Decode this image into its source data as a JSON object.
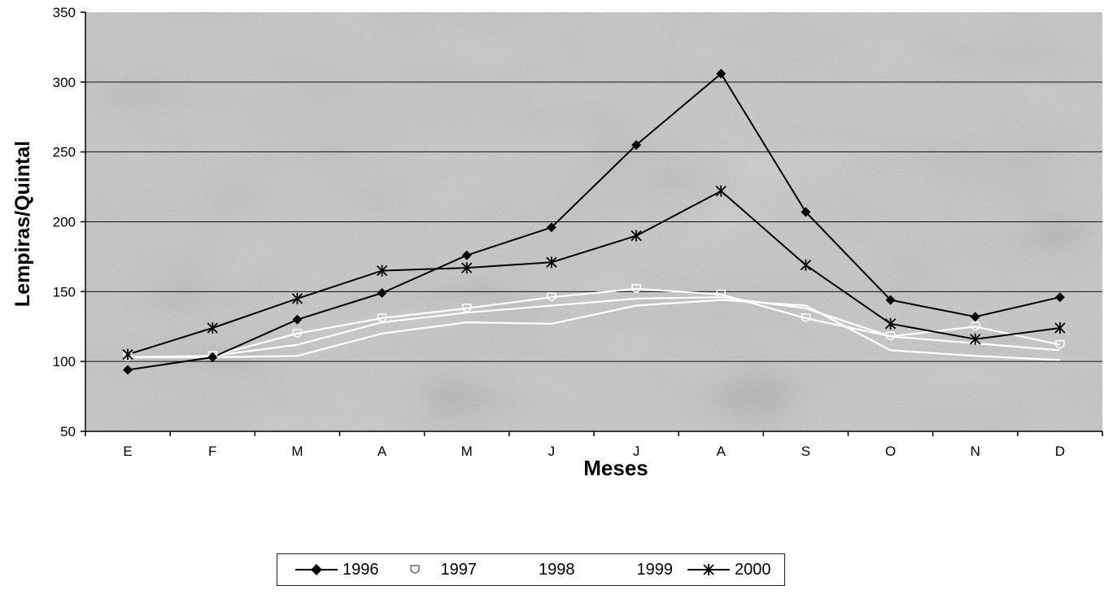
{
  "chart_data": {
    "type": "line",
    "xlabel": "Meses",
    "ylabel": "Lempiras/Quintal",
    "categories": [
      "E",
      "F",
      "M",
      "A",
      "M",
      "J",
      "J",
      "A",
      "S",
      "O",
      "N",
      "D"
    ],
    "ylim": [
      50,
      350
    ],
    "yticks": [
      "50",
      "100",
      "150",
      "200",
      "250",
      "300",
      "350"
    ],
    "grid": true,
    "legend_position": "bottom",
    "series": [
      {
        "name": "1996",
        "marker": "diamond",
        "color": "#000000",
        "values": [
          94,
          103,
          130,
          149,
          176,
          196,
          255,
          306,
          207,
          144,
          132,
          146
        ]
      },
      {
        "name": "1997",
        "marker": "shield",
        "color": "#ffffff",
        "values": [
          103,
          104,
          120,
          131,
          138,
          146,
          152,
          148,
          131,
          118,
          125,
          112
        ]
      },
      {
        "name": "1998",
        "marker": "none",
        "color": "#ffffff",
        "values": [
          103,
          103,
          104,
          120,
          128,
          127,
          140,
          144,
          140,
          108,
          104,
          101
        ]
      },
      {
        "name": "1999",
        "marker": "none",
        "color": "#ffffff",
        "values": [
          103,
          104,
          112,
          128,
          135,
          140,
          145,
          146,
          138,
          118,
          113,
          108
        ]
      },
      {
        "name": "2000",
        "marker": "star",
        "color": "#000000",
        "values": [
          105,
          124,
          145,
          165,
          167,
          171,
          190,
          222,
          169,
          127,
          116,
          124
        ]
      }
    ]
  }
}
